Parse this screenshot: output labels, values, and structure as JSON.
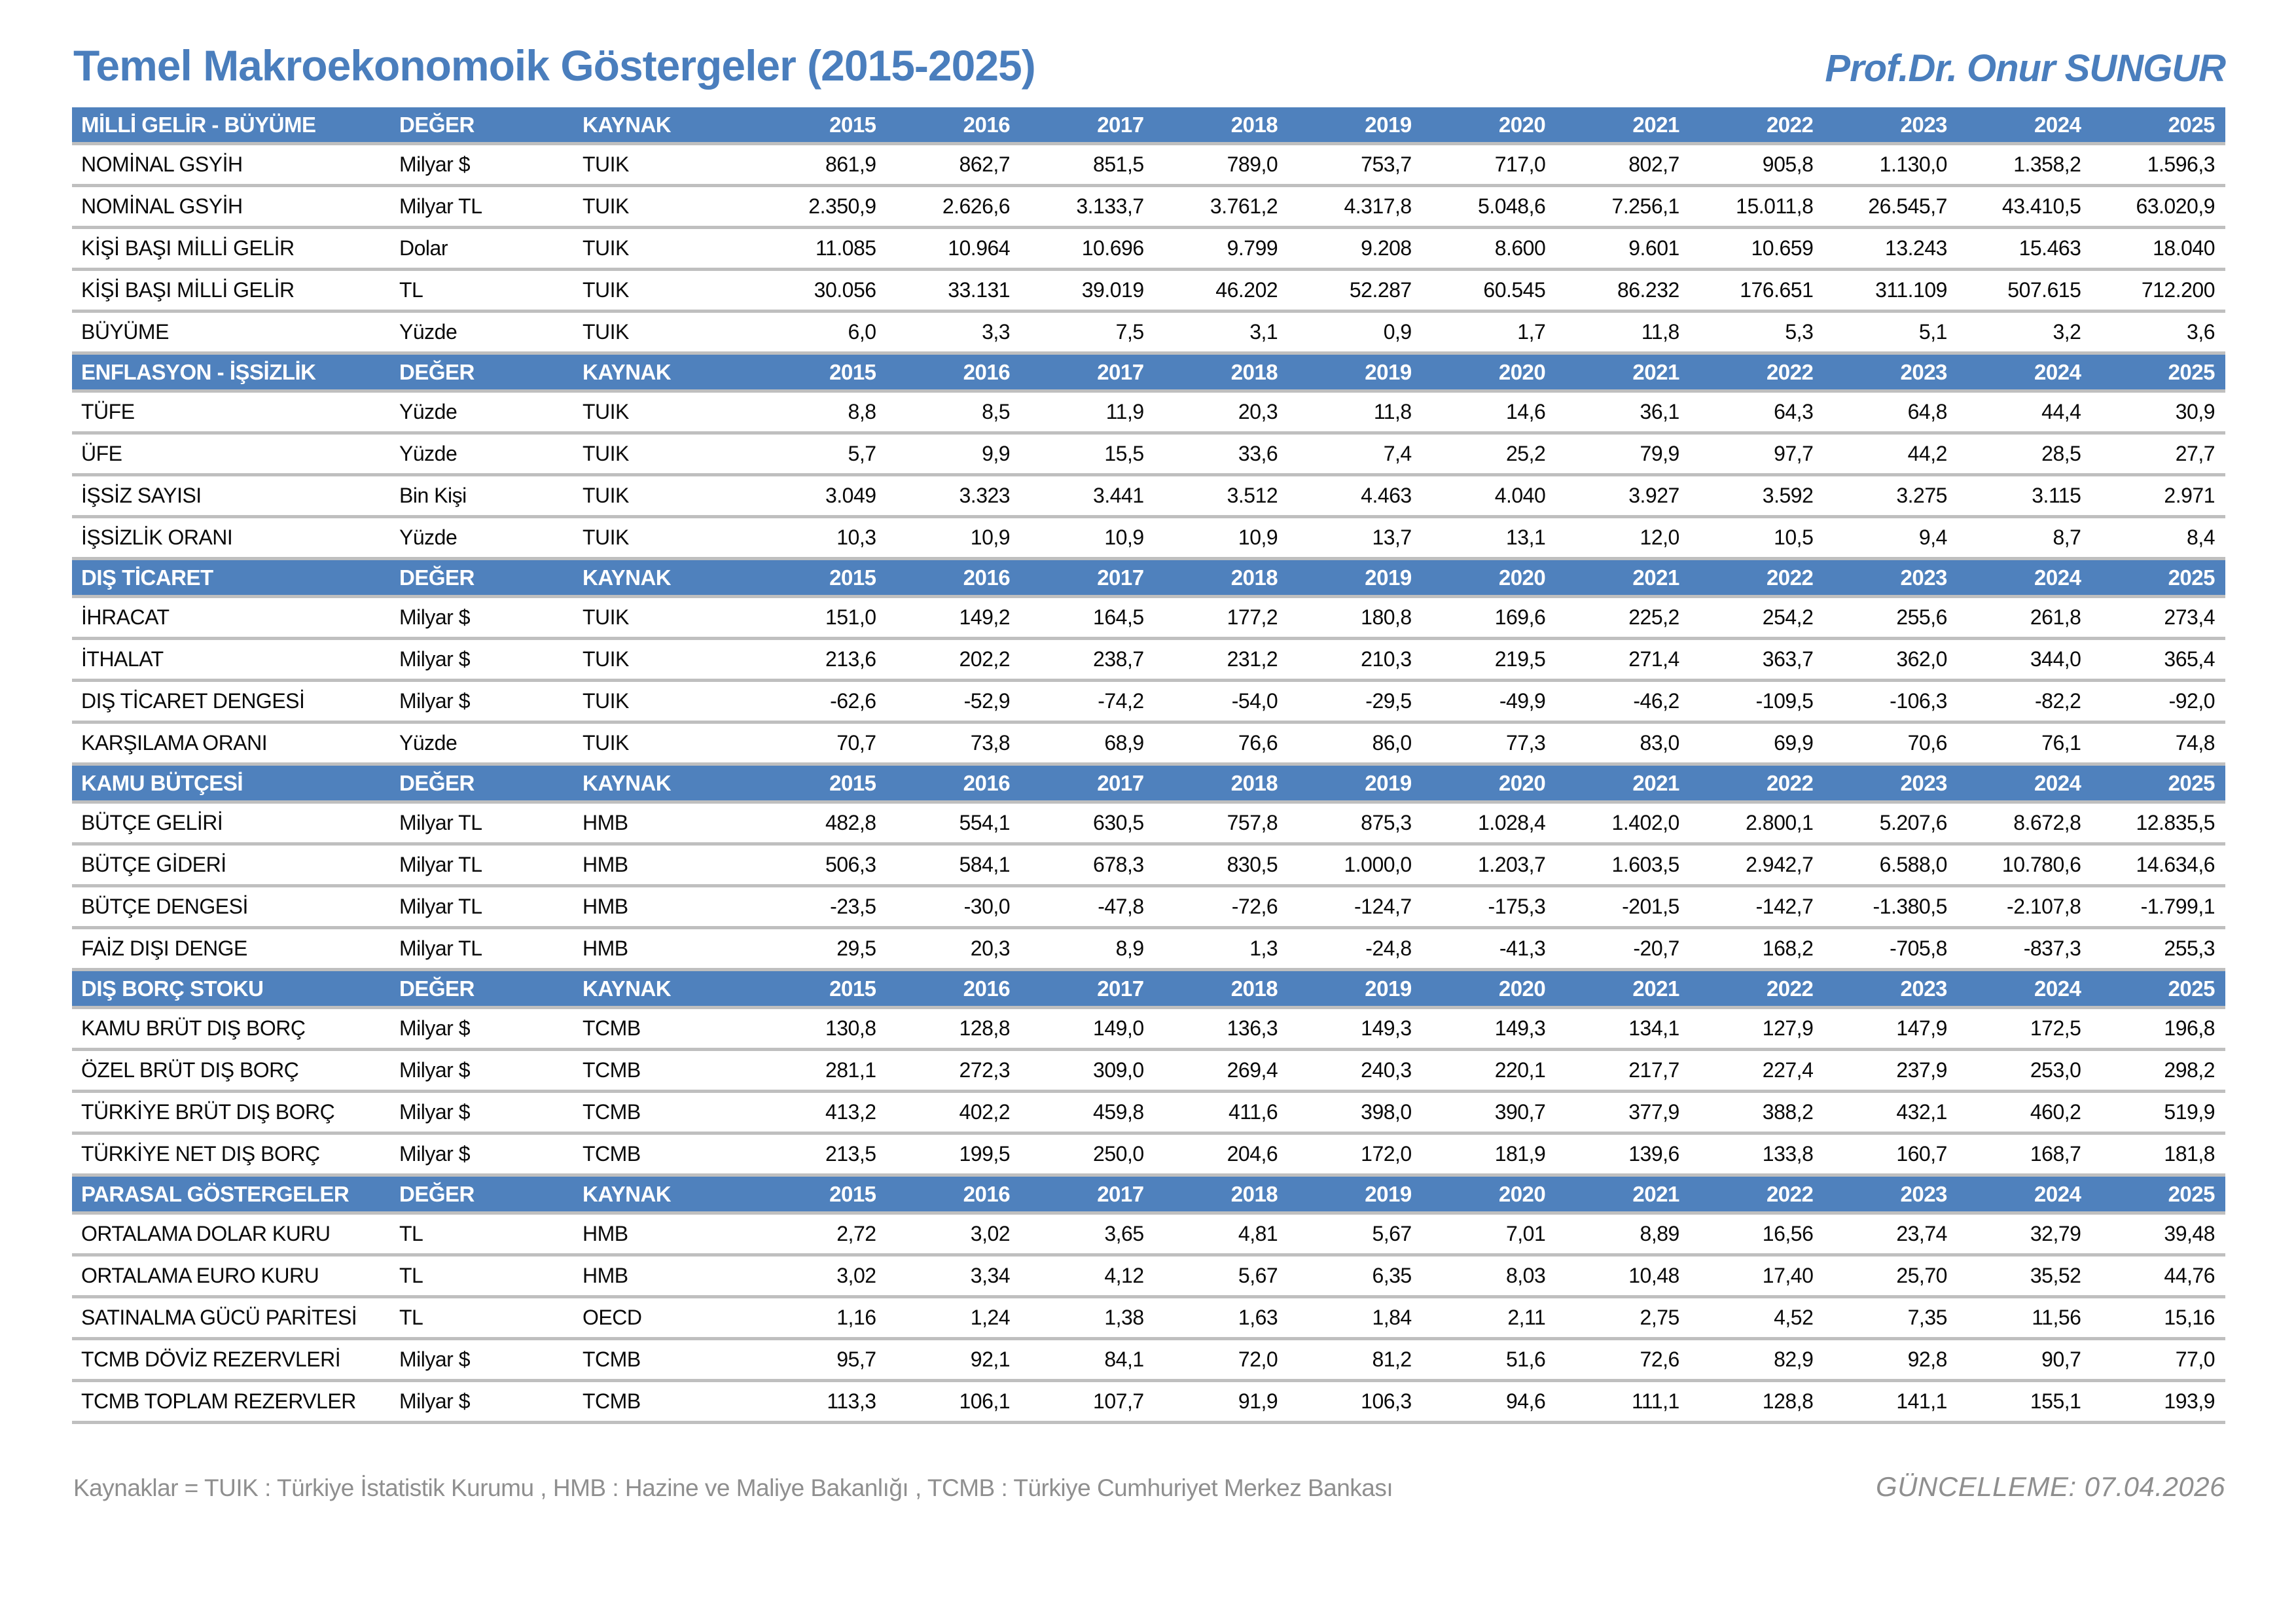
{
  "header": {
    "title": "Temel Makroekonomoik Göstergeler (2015-2025)",
    "author": "Prof.Dr. Onur SUNGUR"
  },
  "table": {
    "value_header": "DEĞER",
    "source_header": "KAYNAK",
    "years": [
      "2015",
      "2016",
      "2017",
      "2018",
      "2019",
      "2020",
      "2021",
      "2022",
      "2023",
      "2024",
      "2025"
    ],
    "sections": [
      {
        "name": "MİLLİ GELİR - BÜYÜME",
        "rows": [
          {
            "label": "NOMİNAL GSYİH",
            "unit": "Milyar $",
            "source": "TUIK",
            "values": [
              "861,9",
              "862,7",
              "851,5",
              "789,0",
              "753,7",
              "717,0",
              "802,7",
              "905,8",
              "1.130,0",
              "1.358,2",
              "1.596,3"
            ]
          },
          {
            "label": "NOMİNAL GSYİH",
            "unit": "Milyar TL",
            "source": "TUIK",
            "values": [
              "2.350,9",
              "2.626,6",
              "3.133,7",
              "3.761,2",
              "4.317,8",
              "5.048,6",
              "7.256,1",
              "15.011,8",
              "26.545,7",
              "43.410,5",
              "63.020,9"
            ]
          },
          {
            "label": "KİŞİ BAŞI MİLLİ GELİR",
            "unit": "Dolar",
            "source": "TUIK",
            "values": [
              "11.085",
              "10.964",
              "10.696",
              "9.799",
              "9.208",
              "8.600",
              "9.601",
              "10.659",
              "13.243",
              "15.463",
              "18.040"
            ]
          },
          {
            "label": "KİŞİ BAŞI MİLLİ GELİR",
            "unit": "TL",
            "source": "TUIK",
            "values": [
              "30.056",
              "33.131",
              "39.019",
              "46.202",
              "52.287",
              "60.545",
              "86.232",
              "176.651",
              "311.109",
              "507.615",
              "712.200"
            ]
          },
          {
            "label": "BÜYÜME",
            "unit": "Yüzde",
            "source": "TUIK",
            "values": [
              "6,0",
              "3,3",
              "7,5",
              "3,1",
              "0,9",
              "1,7",
              "11,8",
              "5,3",
              "5,1",
              "3,2",
              "3,6"
            ]
          }
        ]
      },
      {
        "name": "ENFLASYON - İŞSİZLİK",
        "rows": [
          {
            "label": "TÜFE",
            "unit": "Yüzde",
            "source": "TUIK",
            "values": [
              "8,8",
              "8,5",
              "11,9",
              "20,3",
              "11,8",
              "14,6",
              "36,1",
              "64,3",
              "64,8",
              "44,4",
              "30,9"
            ]
          },
          {
            "label": "ÜFE",
            "unit": "Yüzde",
            "source": "TUIK",
            "values": [
              "5,7",
              "9,9",
              "15,5",
              "33,6",
              "7,4",
              "25,2",
              "79,9",
              "97,7",
              "44,2",
              "28,5",
              "27,7"
            ]
          },
          {
            "label": "İŞSİZ SAYISI",
            "unit": "Bin Kişi",
            "source": "TUIK",
            "values": [
              "3.049",
              "3.323",
              "3.441",
              "3.512",
              "4.463",
              "4.040",
              "3.927",
              "3.592",
              "3.275",
              "3.115",
              "2.971"
            ]
          },
          {
            "label": "İŞSİZLİK ORANI",
            "unit": "Yüzde",
            "source": "TUIK",
            "values": [
              "10,3",
              "10,9",
              "10,9",
              "10,9",
              "13,7",
              "13,1",
              "12,0",
              "10,5",
              "9,4",
              "8,7",
              "8,4"
            ]
          }
        ]
      },
      {
        "name": "DIŞ TİCARET",
        "rows": [
          {
            "label": "İHRACAT",
            "unit": "Milyar $",
            "source": "TUIK",
            "values": [
              "151,0",
              "149,2",
              "164,5",
              "177,2",
              "180,8",
              "169,6",
              "225,2",
              "254,2",
              "255,6",
              "261,8",
              "273,4"
            ]
          },
          {
            "label": "İTHALAT",
            "unit": "Milyar $",
            "source": "TUIK",
            "values": [
              "213,6",
              "202,2",
              "238,7",
              "231,2",
              "210,3",
              "219,5",
              "271,4",
              "363,7",
              "362,0",
              "344,0",
              "365,4"
            ]
          },
          {
            "label": "DIŞ TİCARET DENGESİ",
            "unit": "Milyar $",
            "source": "TUIK",
            "values": [
              "-62,6",
              "-52,9",
              "-74,2",
              "-54,0",
              "-29,5",
              "-49,9",
              "-46,2",
              "-109,5",
              "-106,3",
              "-82,2",
              "-92,0"
            ]
          },
          {
            "label": "KARŞILAMA ORANI",
            "unit": "Yüzde",
            "source": "TUIK",
            "values": [
              "70,7",
              "73,8",
              "68,9",
              "76,6",
              "86,0",
              "77,3",
              "83,0",
              "69,9",
              "70,6",
              "76,1",
              "74,8"
            ]
          }
        ]
      },
      {
        "name": "KAMU BÜTÇESİ",
        "rows": [
          {
            "label": "BÜTÇE GELİRİ",
            "unit": "Milyar TL",
            "source": "HMB",
            "values": [
              "482,8",
              "554,1",
              "630,5",
              "757,8",
              "875,3",
              "1.028,4",
              "1.402,0",
              "2.800,1",
              "5.207,6",
              "8.672,8",
              "12.835,5"
            ]
          },
          {
            "label": "BÜTÇE GİDERİ",
            "unit": "Milyar TL",
            "source": "HMB",
            "values": [
              "506,3",
              "584,1",
              "678,3",
              "830,5",
              "1.000,0",
              "1.203,7",
              "1.603,5",
              "2.942,7",
              "6.588,0",
              "10.780,6",
              "14.634,6"
            ]
          },
          {
            "label": "BÜTÇE DENGESİ",
            "unit": "Milyar TL",
            "source": "HMB",
            "values": [
              "-23,5",
              "-30,0",
              "-47,8",
              "-72,6",
              "-124,7",
              "-175,3",
              "-201,5",
              "-142,7",
              "-1.380,5",
              "-2.107,8",
              "-1.799,1"
            ]
          },
          {
            "label": "FAİZ DIŞI DENGE",
            "unit": "Milyar TL",
            "source": "HMB",
            "values": [
              "29,5",
              "20,3",
              "8,9",
              "1,3",
              "-24,8",
              "-41,3",
              "-20,7",
              "168,2",
              "-705,8",
              "-837,3",
              "255,3"
            ]
          }
        ]
      },
      {
        "name": "DIŞ BORÇ STOKU",
        "rows": [
          {
            "label": "KAMU BRÜT DIŞ BORÇ",
            "unit": "Milyar $",
            "source": "TCMB",
            "values": [
              "130,8",
              "128,8",
              "149,0",
              "136,3",
              "149,3",
              "149,3",
              "134,1",
              "127,9",
              "147,9",
              "172,5",
              "196,8"
            ]
          },
          {
            "label": "ÖZEL BRÜT DIŞ BORÇ",
            "unit": "Milyar $",
            "source": "TCMB",
            "values": [
              "281,1",
              "272,3",
              "309,0",
              "269,4",
              "240,3",
              "220,1",
              "217,7",
              "227,4",
              "237,9",
              "253,0",
              "298,2"
            ]
          },
          {
            "label": "TÜRKİYE BRÜT DIŞ BORÇ",
            "unit": "Milyar $",
            "source": "TCMB",
            "values": [
              "413,2",
              "402,2",
              "459,8",
              "411,6",
              "398,0",
              "390,7",
              "377,9",
              "388,2",
              "432,1",
              "460,2",
              "519,9"
            ]
          },
          {
            "label": "TÜRKİYE NET DIŞ BORÇ",
            "unit": "Milyar $",
            "source": "TCMB",
            "values": [
              "213,5",
              "199,5",
              "250,0",
              "204,6",
              "172,0",
              "181,9",
              "139,6",
              "133,8",
              "160,7",
              "168,7",
              "181,8"
            ]
          }
        ]
      },
      {
        "name": "PARASAL GÖSTERGELER",
        "rows": [
          {
            "label": "ORTALAMA DOLAR KURU",
            "unit": "TL",
            "source": "HMB",
            "values": [
              "2,72",
              "3,02",
              "3,65",
              "4,81",
              "5,67",
              "7,01",
              "8,89",
              "16,56",
              "23,74",
              "32,79",
              "39,48"
            ]
          },
          {
            "label": "ORTALAMA EURO KURU",
            "unit": "TL",
            "source": "HMB",
            "values": [
              "3,02",
              "3,34",
              "4,12",
              "5,67",
              "6,35",
              "8,03",
              "10,48",
              "17,40",
              "25,70",
              "35,52",
              "44,76"
            ]
          },
          {
            "label": "SATINALMA GÜCÜ PARİTESİ",
            "unit": "TL",
            "source": "OECD",
            "values": [
              "1,16",
              "1,24",
              "1,38",
              "1,63",
              "1,84",
              "2,11",
              "2,75",
              "4,52",
              "7,35",
              "11,56",
              "15,16"
            ]
          },
          {
            "label": "TCMB DÖVİZ REZERVLERİ",
            "unit": "Milyar $",
            "source": "TCMB",
            "values": [
              "95,7",
              "92,1",
              "84,1",
              "72,0",
              "81,2",
              "51,6",
              "72,6",
              "82,9",
              "92,8",
              "90,7",
              "77,0"
            ]
          },
          {
            "label": "TCMB TOPLAM REZERVLER",
            "unit": "Milyar $",
            "source": "TCMB",
            "values": [
              "113,3",
              "106,1",
              "107,7",
              "91,9",
              "106,3",
              "94,6",
              "111,1",
              "128,8",
              "141,1",
              "155,1",
              "193,9"
            ]
          }
        ]
      }
    ]
  },
  "footer": {
    "sources_note": "Kaynaklar = TUIK : Türkiye İstatistik Kurumu , HMB : Hazine ve Maliye Bakanlığı , TCMB : Türkiye Cumhuriyet Merkez Bankası",
    "update_note": "GÜNCELLEME: 07.04.2026"
  },
  "colors": {
    "header_blue": "#4f81bd",
    "title_blue": "#4a7ebd",
    "separator_gray": "#bfbfbf",
    "footer_gray": "#8f8f8f"
  }
}
